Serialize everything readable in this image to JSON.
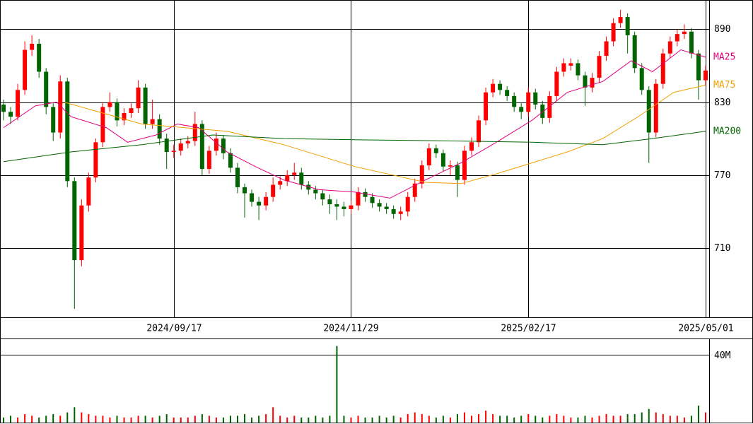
{
  "chart_data": {
    "type": "candlestick",
    "ylim": [
      653,
      914
    ],
    "yticks": [
      890,
      830,
      770,
      710
    ],
    "up_color": "#ff0000",
    "down_color": "#006400",
    "categories": [
      null,
      null,
      null,
      null,
      null,
      null,
      null,
      null,
      null,
      null,
      null,
      null,
      null,
      null,
      null,
      null,
      null,
      null,
      null,
      null,
      null,
      null,
      null,
      null,
      "2024/09/17",
      null,
      null,
      null,
      null,
      null,
      null,
      null,
      null,
      null,
      null,
      null,
      null,
      null,
      null,
      null,
      null,
      null,
      null,
      null,
      null,
      null,
      null,
      null,
      null,
      "2024/11/29",
      null,
      null,
      null,
      null,
      null,
      null,
      null,
      null,
      null,
      null,
      null,
      null,
      null,
      null,
      null,
      null,
      null,
      null,
      null,
      null,
      null,
      null,
      null,
      null,
      "2025/02/17",
      null,
      null,
      null,
      null,
      null,
      null,
      null,
      null,
      null,
      null,
      null,
      null,
      null,
      null,
      null,
      null,
      null,
      null,
      null,
      null,
      null,
      null,
      null,
      null,
      "2025/05/01"
    ],
    "candles": [
      [
        828,
        832,
        815,
        822
      ],
      [
        822,
        826,
        812,
        818
      ],
      [
        818,
        845,
        815,
        840
      ],
      [
        840,
        880,
        836,
        873
      ],
      [
        873,
        885,
        868,
        878
      ],
      [
        878,
        882,
        850,
        855
      ],
      [
        855,
        858,
        820,
        826
      ],
      [
        826,
        830,
        798,
        805
      ],
      [
        805,
        852,
        800,
        847
      ],
      [
        847,
        850,
        760,
        765
      ],
      [
        765,
        768,
        660,
        700
      ],
      [
        700,
        750,
        695,
        745
      ],
      [
        745,
        772,
        740,
        768
      ],
      [
        768,
        800,
        764,
        797
      ],
      [
        797,
        830,
        793,
        826
      ],
      [
        826,
        838,
        822,
        830
      ],
      [
        830,
        833,
        810,
        815
      ],
      [
        815,
        825,
        811,
        821
      ],
      [
        821,
        829,
        817,
        825
      ],
      [
        825,
        848,
        821,
        842
      ],
      [
        842,
        845,
        808,
        812
      ],
      [
        812,
        832,
        808,
        816
      ],
      [
        816,
        820,
        795,
        800
      ],
      [
        800,
        804,
        775,
        789
      ],
      [
        789,
        795,
        784,
        790
      ],
      [
        790,
        800,
        786,
        796
      ],
      [
        796,
        802,
        792,
        798
      ],
      [
        798,
        822,
        794,
        812
      ],
      [
        812,
        815,
        770,
        775
      ],
      [
        775,
        794,
        771,
        790
      ],
      [
        790,
        805,
        786,
        800
      ],
      [
        800,
        803,
        783,
        788
      ],
      [
        788,
        792,
        772,
        776
      ],
      [
        776,
        780,
        755,
        760
      ],
      [
        760,
        763,
        735,
        755
      ],
      [
        755,
        758,
        744,
        748
      ],
      [
        748,
        752,
        733,
        745
      ],
      [
        745,
        756,
        741,
        752
      ],
      [
        752,
        768,
        748,
        762
      ],
      [
        762,
        769,
        758,
        765
      ],
      [
        765,
        774,
        761,
        770
      ],
      [
        770,
        780,
        766,
        772
      ],
      [
        772,
        776,
        758,
        762
      ],
      [
        762,
        765,
        754,
        758
      ],
      [
        758,
        761,
        750,
        755
      ],
      [
        755,
        758,
        745,
        750
      ],
      [
        750,
        754,
        738,
        746
      ],
      [
        746,
        750,
        733,
        744
      ],
      [
        744,
        748,
        736,
        742
      ],
      [
        742,
        749,
        738,
        745
      ],
      [
        745,
        760,
        741,
        756
      ],
      [
        756,
        759,
        748,
        752
      ],
      [
        752,
        755,
        743,
        747
      ],
      [
        747,
        750,
        740,
        744
      ],
      [
        744,
        747,
        738,
        742
      ],
      [
        742,
        745,
        734,
        738
      ],
      [
        738,
        744,
        733,
        740
      ],
      [
        740,
        756,
        736,
        752
      ],
      [
        752,
        767,
        748,
        763
      ],
      [
        763,
        782,
        759,
        778
      ],
      [
        778,
        796,
        774,
        792
      ],
      [
        792,
        795,
        784,
        788
      ],
      [
        788,
        791,
        773,
        777
      ],
      [
        777,
        782,
        770,
        778
      ],
      [
        778,
        781,
        752,
        766
      ],
      [
        766,
        794,
        762,
        790
      ],
      [
        790,
        801,
        786,
        797
      ],
      [
        797,
        819,
        793,
        815
      ],
      [
        815,
        842,
        811,
        838
      ],
      [
        838,
        849,
        834,
        845
      ],
      [
        845,
        848,
        836,
        840
      ],
      [
        840,
        843,
        831,
        835
      ],
      [
        835,
        838,
        822,
        826
      ],
      [
        826,
        829,
        816,
        822
      ],
      [
        822,
        842,
        818,
        838
      ],
      [
        838,
        841,
        824,
        828
      ],
      [
        828,
        831,
        812,
        817
      ],
      [
        817,
        839,
        813,
        835
      ],
      [
        835,
        859,
        831,
        855
      ],
      [
        855,
        866,
        851,
        862
      ],
      [
        860,
        866,
        856,
        862
      ],
      [
        862,
        865,
        848,
        852
      ],
      [
        852,
        855,
        827,
        842
      ],
      [
        842,
        854,
        838,
        850
      ],
      [
        850,
        872,
        846,
        868
      ],
      [
        868,
        884,
        864,
        880
      ],
      [
        880,
        899,
        876,
        895
      ],
      [
        895,
        906,
        891,
        900
      ],
      [
        900,
        903,
        870,
        885
      ],
      [
        885,
        888,
        854,
        858
      ],
      [
        858,
        862,
        836,
        840
      ],
      [
        840,
        843,
        780,
        805
      ],
      [
        805,
        849,
        801,
        845
      ],
      [
        845,
        874,
        841,
        870
      ],
      [
        870,
        884,
        866,
        880
      ],
      [
        880,
        890,
        876,
        886
      ],
      [
        886,
        894,
        882,
        888
      ],
      [
        888,
        891,
        866,
        870
      ],
      [
        870,
        873,
        832,
        848
      ],
      [
        848,
        860,
        844,
        856
      ]
    ],
    "series": [
      {
        "name": "MA25",
        "color": "#e0007f",
        "x": [
          0,
          4.5,
          7.5,
          9.5,
          14.5,
          17.5,
          21.5,
          24.5,
          27.5,
          31.5,
          35.5,
          39.5,
          44.5,
          49.5,
          54.5,
          59.5,
          64.5,
          69.5,
          74.5,
          79.5,
          84.5,
          88.5,
          91.5,
          95.5,
          99
        ],
        "values": [
          809,
          827,
          830,
          818,
          809,
          797,
          803,
          812,
          809,
          789,
          777,
          766,
          758,
          756,
          751,
          766,
          780,
          797,
          815,
          838,
          847,
          864,
          855,
          873,
          867
        ]
      },
      {
        "name": "MA75",
        "color": "#f0a000",
        "x": [
          8.5,
          19.5,
          31.5,
          39.5,
          49.5,
          59.5,
          64.5,
          69.5,
          74.5,
          79.5,
          84.5,
          89.5,
          94.5,
          99
        ],
        "values": [
          830,
          812,
          806,
          795,
          777,
          764,
          763,
          771,
          780,
          789,
          800,
          818,
          838,
          844
        ]
      },
      {
        "name": "MA200",
        "color": "#006400",
        "x": [
          0,
          9.5,
          19.5,
          29.5,
          39.5,
          49.5,
          64.5,
          74.5,
          84.5,
          91.5,
          99
        ],
        "values": [
          781,
          789,
          795,
          803,
          800,
          799,
          798,
          797,
          795,
          800,
          806
        ]
      }
    ],
    "volume": {
      "ylim": [
        0,
        49
      ],
      "yticks": [
        {
          "value": 40,
          "label": "40M"
        }
      ],
      "values": [
        3,
        4,
        3,
        5,
        4,
        3,
        4,
        5,
        4,
        6,
        9,
        6,
        5,
        4,
        4,
        3,
        4,
        3,
        3,
        4,
        4,
        3,
        4,
        5,
        3,
        3,
        3,
        4,
        5,
        4,
        3,
        3,
        4,
        4,
        5,
        3,
        4,
        5,
        9,
        4,
        3,
        4,
        3,
        3,
        4,
        3,
        4,
        45,
        4,
        3,
        4,
        3,
        3,
        4,
        3,
        4,
        3,
        5,
        6,
        5,
        4,
        3,
        4,
        3,
        5,
        6,
        4,
        5,
        7,
        5,
        4,
        4,
        3,
        4,
        5,
        4,
        3,
        4,
        5,
        4,
        3,
        3,
        4,
        3,
        4,
        5,
        4,
        4,
        5,
        5,
        6,
        8,
        6,
        5,
        4,
        4,
        3,
        4,
        10,
        6
      ]
    }
  }
}
